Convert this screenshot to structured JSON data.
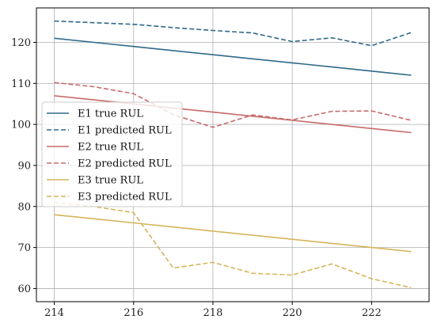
{
  "chart_data": {
    "type": "line",
    "title": "",
    "xlabel": "",
    "ylabel": "",
    "xlim": [
      213.55,
      223.45
    ],
    "ylim": [
      56.8,
      128.4
    ],
    "grid": true,
    "legend_position": "center-left",
    "x": [
      214,
      215,
      216,
      217,
      218,
      219,
      220,
      221,
      222,
      223
    ],
    "xticks": [
      214,
      216,
      218,
      220,
      222
    ],
    "yticks": [
      60,
      70,
      80,
      90,
      100,
      110,
      120
    ],
    "series": [
      {
        "name": "E1 true RUL",
        "color": "#2e6a8a",
        "dash": "solid",
        "values": [
          121,
          120,
          119,
          118,
          117,
          116,
          115,
          114,
          113,
          112
        ]
      },
      {
        "name": "E1 predicted RUL",
        "color": "#2e6a8a",
        "dash": "dashed",
        "values": [
          125.2,
          124.8,
          124.4,
          123.6,
          122.9,
          122.3,
          120.2,
          121.1,
          119.2,
          122.4
        ]
      },
      {
        "name": "E2 true RUL",
        "color": "#c96b6b",
        "dash": "solid",
        "values": [
          107,
          106,
          105,
          104,
          103,
          102,
          101,
          100,
          99,
          98
        ]
      },
      {
        "name": "E2 predicted RUL",
        "color": "#c96b6b",
        "dash": "dashed",
        "values": [
          110.2,
          109.2,
          107.5,
          102.4,
          99.3,
          102.3,
          101.1,
          103.2,
          103.3,
          101.0
        ]
      },
      {
        "name": "E3 true RUL",
        "color": "#d6b45a",
        "dash": "solid",
        "values": [
          78,
          77,
          76,
          75,
          74,
          73,
          72,
          71,
          70,
          69
        ]
      },
      {
        "name": "E3 predicted RUL",
        "color": "#d6b45a",
        "dash": "dashed",
        "values": [
          81.0,
          80.0,
          78.5,
          65.0,
          66.4,
          63.7,
          63.3,
          66.0,
          62.4,
          60.2
        ]
      }
    ]
  }
}
